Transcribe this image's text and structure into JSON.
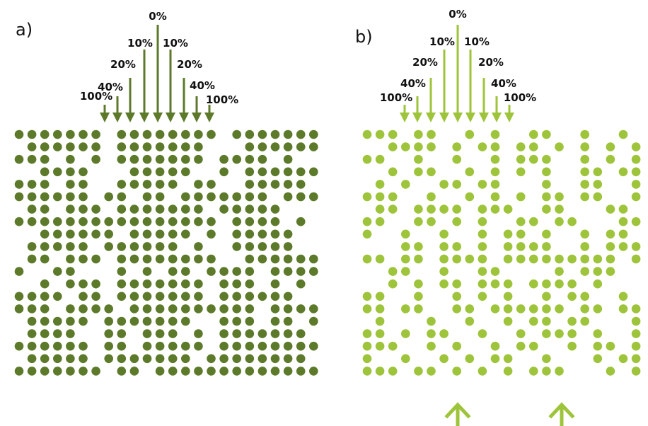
{
  "colors": {
    "panel_a": "#5c7a2a",
    "panel_b": "#9dc43a",
    "text": "#111111"
  },
  "panels": [
    {
      "id": "a",
      "label": "a)",
      "color_key": "panel_a",
      "level_labels": [
        "100%",
        "40%",
        "20%",
        "10%",
        "0%",
        "10%",
        "20%",
        "40%",
        "100%"
      ],
      "dot_rows": [
        "1111111.11111111.1111111",
        ".111111.1111111...111111",
        "111.1.1.1111111.1111.1..",
        "..1111...11111..1.111111",
        "111.11..11111.11..11111.",
        "111111.11.11.1111111.111",
        ".11.111.1111111.11111...",
        "1111111111111111.1111.1.",
        "..111111.11111.1.11111..",
        ".11111.111111.1..11111..",
        ".11.111.11111111..111111",
        "1..11...1.1.11.1111.1111",
        "..1.111.1111111.111.1.1.",
        "1111.11.1111111.111111..",
        "111.1111.1111111111.1111",
        ".11111.1111111..111.11.1",
        ".1111..11.111.1.1111111.",
        "111111.11.11111.11111111",
        ".11111.1111111.11111111.",
        "1111111.11.1111111111111"
      ]
    },
    {
      "id": "b",
      "label": "b)",
      "color_key": "panel_b",
      "level_labels": [
        "100%",
        "40%",
        "20%",
        "10%",
        "0%",
        "10%",
        "20%",
        "40%",
        "100%"
      ],
      "dot_rows": [
        "111.11..1.1..11..1..1.11",
        "..1111.1.11.11.1.1.1.11.",
        "11..1..1..1.111..1.1.1..",
        "..1.11..1.1.1.1..11.11.1",
        ".1.1..11.11...1..11..1..",
        "111..1..1.1.1.11.11..11.",
        ".11.1111.111..11...11.1.",
        "11..11.1.1..11.11...11.1",
        "1..1..1..1.11.1..1.11.11",
        "...11.11.1.1111..1.111..",
        "11.11.1111.111111111.11.",
        "..11..1..11....1.111....",
        "..1.1.11.111.1111.1...11",
        "11..1..1.1.1..1.11..1.11",
        "11.11..11.111111.11.11..",
        ".1...1..1..1.11.11...1..",
        "11.1.11..1..1.111.1..111",
        "111..1.1..1.11..1.11.11.",
        "1..1..1.1.11..1...1.11..",
        "111.11.1.1.1.111...1.11."
      ],
      "bottom_arrow_count": 2
    }
  ]
}
